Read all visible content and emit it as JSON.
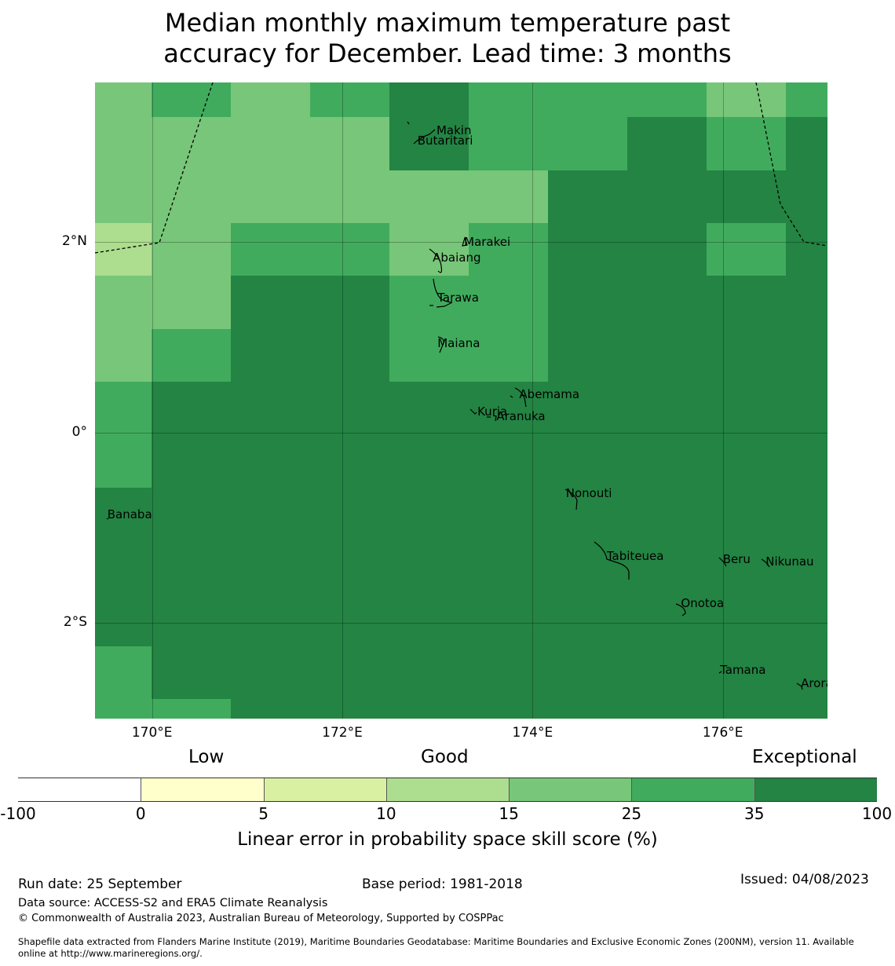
{
  "title": {
    "line1": "Median monthly maximum temperature past",
    "line2": "accuracy for December. Lead time: 3 months"
  },
  "map": {
    "lon_range": [
      169.4,
      177.1
    ],
    "lat_range": [
      -3.01,
      3.68
    ],
    "grid_rows": [
      [
        "c15",
        "c25",
        "c15",
        "c25",
        "c35",
        "c25",
        "c25",
        "c25",
        "c15",
        "c25"
      ],
      [
        "c15",
        "c15",
        "c15",
        "c15",
        "c35",
        "c25",
        "c25",
        "c35",
        "c25",
        "c35"
      ],
      [
        "c15",
        "c15",
        "c15",
        "c15",
        "c15",
        "c15",
        "c35",
        "c35",
        "c35",
        "c35"
      ],
      [
        "c10",
        "c15",
        "c25",
        "c25",
        "c15",
        "c25",
        "c35",
        "c35",
        "c25",
        "c35"
      ],
      [
        "c15",
        "c15",
        "c35",
        "c35",
        "c25",
        "c25",
        "c35",
        "c35",
        "c35",
        "c35"
      ],
      [
        "c15",
        "c25",
        "c35",
        "c35",
        "c25",
        "c25",
        "c35",
        "c35",
        "c35",
        "c35"
      ],
      [
        "c25",
        "c35",
        "c35",
        "c35",
        "c35",
        "c35",
        "c35",
        "c35",
        "c35",
        "c35"
      ],
      [
        "c25",
        "c35",
        "c35",
        "c35",
        "c35",
        "c35",
        "c35",
        "c35",
        "c35",
        "c35"
      ],
      [
        "c35",
        "c35",
        "c35",
        "c35",
        "c35",
        "c35",
        "c35",
        "c35",
        "c35",
        "c35"
      ],
      [
        "c35",
        "c35",
        "c35",
        "c35",
        "c35",
        "c35",
        "c35",
        "c35",
        "c35",
        "c35"
      ],
      [
        "c35",
        "c35",
        "c35",
        "c35",
        "c35",
        "c35",
        "c35",
        "c35",
        "c35",
        "c35"
      ],
      [
        "c25",
        "c35",
        "c35",
        "c35",
        "c35",
        "c35",
        "c35",
        "c35",
        "c35",
        "c35"
      ],
      [
        "c25",
        "c25",
        "c35",
        "c35",
        "c35",
        "c35",
        "c35",
        "c35",
        "c35",
        "c35"
      ]
    ],
    "islands": [
      {
        "name": "Makin",
        "lon": 172.99,
        "lat": 3.18
      },
      {
        "name": "Butaritari",
        "lon": 172.79,
        "lat": 3.07
      },
      {
        "name": "Marakei",
        "lon": 173.28,
        "lat": 2.0
      },
      {
        "name": "Abaiang",
        "lon": 172.95,
        "lat": 1.84
      },
      {
        "name": "Tarawa",
        "lon": 173.0,
        "lat": 1.42
      },
      {
        "name": "Maiana",
        "lon": 173.0,
        "lat": 0.94
      },
      {
        "name": "Abemama",
        "lon": 173.86,
        "lat": 0.4
      },
      {
        "name": "Kuria",
        "lon": 173.42,
        "lat": 0.22
      },
      {
        "name": "Aranuka",
        "lon": 173.62,
        "lat": 0.17
      },
      {
        "name": "Nonouti",
        "lon": 174.35,
        "lat": -0.64
      },
      {
        "name": "Banaba",
        "lon": 169.53,
        "lat": -0.86
      },
      {
        "name": "Tabiteuea",
        "lon": 174.78,
        "lat": -1.3
      },
      {
        "name": "Beru",
        "lon": 176.0,
        "lat": -1.33
      },
      {
        "name": "Nikunau",
        "lon": 176.45,
        "lat": -1.36
      },
      {
        "name": "Onotoa",
        "lon": 175.56,
        "lat": -1.8
      },
      {
        "name": "Tamana",
        "lon": 175.97,
        "lat": -2.5
      },
      {
        "name": "Arorae",
        "lon": 176.82,
        "lat": -2.64
      }
    ],
    "y_ticks": [
      {
        "label": "2°N",
        "lat": 2
      },
      {
        "label": "0°",
        "lat": 0
      },
      {
        "label": "2°S",
        "lat": -2
      }
    ],
    "x_ticks": [
      {
        "label": "170°E",
        "lon": 170
      },
      {
        "label": "172°E",
        "lon": 172
      },
      {
        "label": "174°E",
        "lon": 174
      },
      {
        "label": "176°E",
        "lon": 176
      }
    ]
  },
  "legend": {
    "categories": [
      "Low",
      "Good",
      "Exceptional"
    ],
    "bins": [
      {
        "from": -100,
        "to": 0,
        "color": "#ffffff"
      },
      {
        "from": 0,
        "to": 5,
        "color": "#ffffcc"
      },
      {
        "from": 5,
        "to": 10,
        "color": "#d9f0a3"
      },
      {
        "from": 10,
        "to": 15,
        "color": "#addd8e"
      },
      {
        "from": 15,
        "to": 25,
        "color": "#78c679"
      },
      {
        "from": 25,
        "to": 35,
        "color": "#41ab5d"
      },
      {
        "from": 35,
        "to": 100,
        "color": "#238443"
      }
    ],
    "tick_labels": [
      "-100",
      "0",
      "5",
      "10",
      "15",
      "25",
      "35",
      "100"
    ],
    "label": "Linear error in probability space skill score (%)"
  },
  "colors": {
    "c10": "#addd8e",
    "c15": "#78c679",
    "c25": "#41ab5d",
    "c35": "#238443"
  },
  "footer": {
    "run_date": "Run date: 25 September",
    "base_period": "Base period: 1981-2018",
    "issued": "Issued: 04/08/2023",
    "data_source": "Data source: ACCESS-S2 and ERA5 Climate Reanalysis",
    "copyright": "© Commonwealth of Australia 2023, Australian Bureau of Meteorology, Supported by COSPPac",
    "shapefile_line1": "Shapefile data extracted from Flanders Marine Institute (2019), Maritime Boundaries Geodatabase: Maritime Boundaries and Exclusive Economic Zones (200NM), version 11. Available",
    "shapefile_line2": "online at http://www.marineregions.org/."
  }
}
